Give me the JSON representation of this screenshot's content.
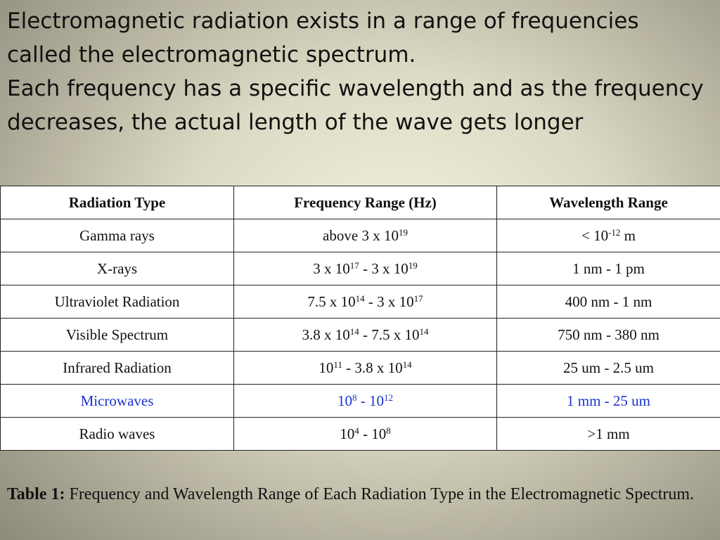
{
  "intro": {
    "paragraph1": "Electromagnetic radiation exists in a range of frequencies called the electromagnetic spectrum.",
    "paragraph2": "Each frequency has a specific wavelength and as the frequency decreases, the actual length of the wave gets longer"
  },
  "table": {
    "headers": [
      "Radiation Type",
      "Frequency Range (Hz)",
      "Wavelength Range"
    ],
    "rows": [
      {
        "type": "Gamma rays",
        "freq": [
          "above 3 x 10",
          "19"
        ],
        "wave": [
          "< 10",
          "-12",
          " m"
        ]
      },
      {
        "type": "X-rays",
        "freq": [
          "3 x 10",
          "17",
          " - 3 x 10",
          "19"
        ],
        "wave": [
          "1 nm - 1 pm"
        ]
      },
      {
        "type": "Ultraviolet Radiation",
        "freq": [
          "7.5 x 10",
          "14",
          " - 3 x 10",
          "17"
        ],
        "wave": [
          "400 nm - 1 nm"
        ]
      },
      {
        "type": "Visible Spectrum",
        "freq": [
          "3.8 x 10",
          "14",
          " - 7.5 x 10",
          "14"
        ],
        "wave": [
          "750 nm - 380 nm"
        ]
      },
      {
        "type": "Infrared Radiation",
        "freq": [
          "10",
          "11",
          " - 3.8 x 10",
          "14"
        ],
        "wave": [
          "25 um - 2.5 um"
        ]
      },
      {
        "type": "Microwaves",
        "freq": [
          "10",
          "8",
          " - 10",
          "12"
        ],
        "wave": [
          "1 mm - 25 um"
        ],
        "highlight": true
      },
      {
        "type": "Radio waves",
        "freq": [
          "10",
          "4",
          " - 10",
          "8"
        ],
        "wave": [
          ">1 mm"
        ]
      }
    ],
    "highlight_color": "#1a33cc"
  },
  "caption": {
    "label": "Table 1:",
    "text": " Frequency and Wavelength Range of Each Radiation Type in the Electromagnetic Spectrum."
  }
}
